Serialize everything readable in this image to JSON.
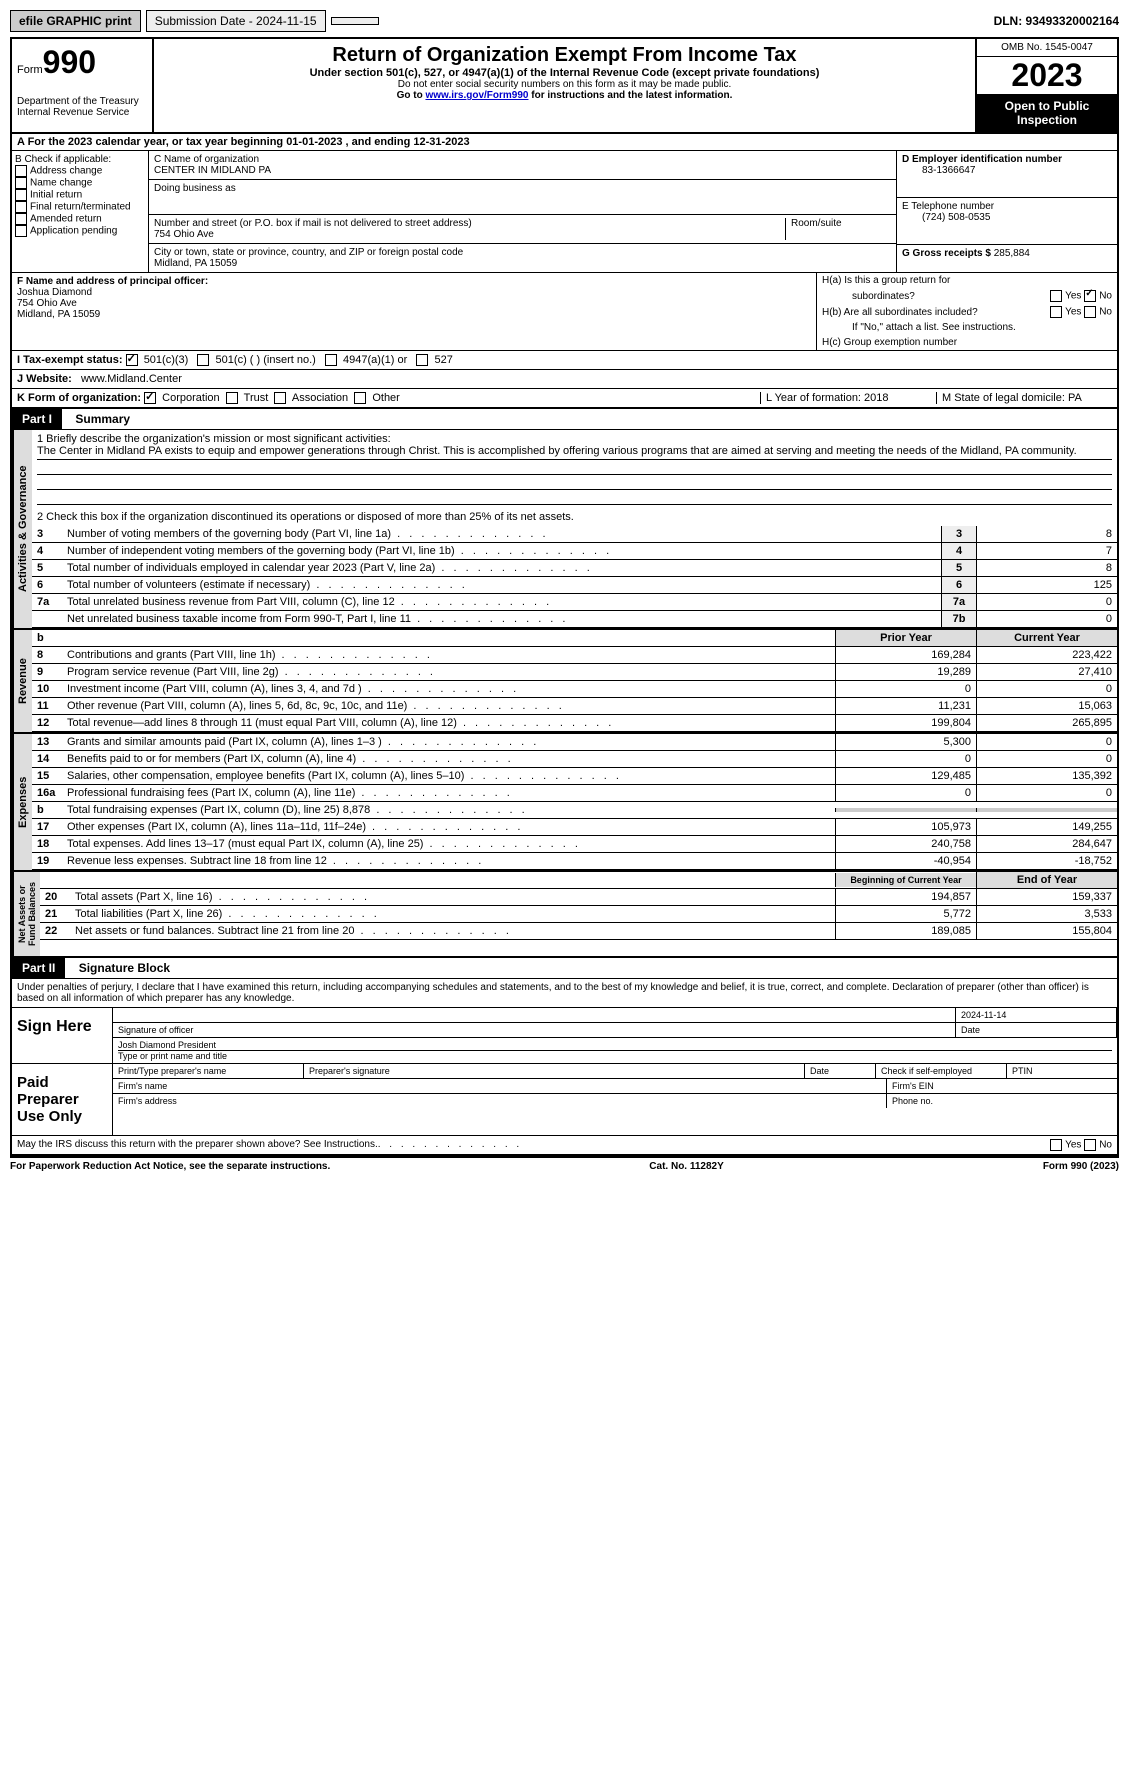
{
  "topbar": {
    "efile": "efile GRAPHIC print",
    "submission": "Submission Date - 2024-11-15",
    "dln": "DLN: 93493320002164"
  },
  "header": {
    "form_label": "Form",
    "form_num": "990",
    "dept": "Department of the Treasury\nInternal Revenue Service",
    "title": "Return of Organization Exempt From Income Tax",
    "subtitle": "Under section 501(c), 527, or 4947(a)(1) of the Internal Revenue Code (except private foundations)",
    "ssn_warn": "Do not enter social security numbers on this form as it may be made public.",
    "goto": "Go to ",
    "url": "www.irs.gov/Form990",
    "goto2": " for instructions and the latest information.",
    "omb": "OMB No. 1545-0047",
    "year": "2023",
    "public": "Open to Public Inspection"
  },
  "row_a": "A For the 2023 calendar year, or tax year beginning 01-01-2023    , and ending 12-31-2023",
  "box_b": {
    "label": "B Check if applicable:",
    "items": [
      "Address change",
      "Name change",
      "Initial return",
      "Final return/terminated",
      "Amended return",
      "Application pending"
    ]
  },
  "box_c": {
    "name_label": "C Name of organization",
    "name": "CENTER IN MIDLAND PA",
    "dba_label": "Doing business as",
    "addr_label": "Number and street (or P.O. box if mail is not delivered to street address)",
    "room_label": "Room/suite",
    "addr": "754 Ohio Ave",
    "city_label": "City or town, state or province, country, and ZIP or foreign postal code",
    "city": "Midland, PA  15059"
  },
  "box_d": {
    "ein_label": "D Employer identification number",
    "ein": "83-1366647",
    "phone_label": "E Telephone number",
    "phone": "(724) 508-0535",
    "gross_label": "G Gross receipts $ ",
    "gross": "285,884"
  },
  "box_f": {
    "label": "F  Name and address of principal officer:",
    "name": "Joshua Diamond",
    "addr1": "754 Ohio Ave",
    "addr2": "Midland, PA  15059"
  },
  "box_h": {
    "ha": "H(a)  Is this a group return for",
    "ha2": "subordinates?",
    "hb": "H(b)  Are all subordinates included?",
    "hb_note": "If \"No,\" attach a list. See instructions.",
    "hc": "H(c)  Group exemption number",
    "yes": "Yes",
    "no": "No"
  },
  "row_i": {
    "label": "I    Tax-exempt status:",
    "opts": [
      "501(c)(3)",
      "501(c) (  ) (insert no.)",
      "4947(a)(1) or",
      "527"
    ]
  },
  "row_j": {
    "label": "J   Website:",
    "val": "www.Midland.Center"
  },
  "row_k": {
    "label": "K Form of organization:",
    "opts": [
      "Corporation",
      "Trust",
      "Association",
      "Other"
    ],
    "l": "L Year of formation: 2018",
    "m": "M State of legal domicile: PA"
  },
  "part1": {
    "num": "Part I",
    "title": "Summary"
  },
  "mission": {
    "label": "1  Briefly describe the organization's mission or most significant activities:",
    "text": "The Center in Midland PA exists to equip and empower generations through Christ. This is accomplished by offering various programs that are aimed at serving and meeting the needs of the Midland, PA community."
  },
  "line2": "2   Check this box      if the organization discontinued its operations or disposed of more than 25% of its net assets.",
  "gov_lines": [
    {
      "n": "3",
      "d": "Number of voting members of the governing body (Part VI, line 1a)",
      "b": "3",
      "v": "8"
    },
    {
      "n": "4",
      "d": "Number of independent voting members of the governing body (Part VI, line 1b)",
      "b": "4",
      "v": "7"
    },
    {
      "n": "5",
      "d": "Total number of individuals employed in calendar year 2023 (Part V, line 2a)",
      "b": "5",
      "v": "8"
    },
    {
      "n": "6",
      "d": "Total number of volunteers (estimate if necessary)",
      "b": "6",
      "v": "125"
    },
    {
      "n": "7a",
      "d": "Total unrelated business revenue from Part VIII, column (C), line 12",
      "b": "7a",
      "v": "0"
    },
    {
      "n": "",
      "d": "Net unrelated business taxable income from Form 990-T, Part I, line 11",
      "b": "7b",
      "v": "0"
    }
  ],
  "rev_hdr": {
    "n": "b",
    "prior": "Prior Year",
    "curr": "Current Year"
  },
  "rev_lines": [
    {
      "n": "8",
      "d": "Contributions and grants (Part VIII, line 1h)",
      "p": "169,284",
      "c": "223,422"
    },
    {
      "n": "9",
      "d": "Program service revenue (Part VIII, line 2g)",
      "p": "19,289",
      "c": "27,410"
    },
    {
      "n": "10",
      "d": "Investment income (Part VIII, column (A), lines 3, 4, and 7d )",
      "p": "0",
      "c": "0"
    },
    {
      "n": "11",
      "d": "Other revenue (Part VIII, column (A), lines 5, 6d, 8c, 9c, 10c, and 11e)",
      "p": "11,231",
      "c": "15,063"
    },
    {
      "n": "12",
      "d": "Total revenue—add lines 8 through 11 (must equal Part VIII, column (A), line 12)",
      "p": "199,804",
      "c": "265,895"
    }
  ],
  "exp_lines": [
    {
      "n": "13",
      "d": "Grants and similar amounts paid (Part IX, column (A), lines 1–3 )",
      "p": "5,300",
      "c": "0"
    },
    {
      "n": "14",
      "d": "Benefits paid to or for members (Part IX, column (A), line 4)",
      "p": "0",
      "c": "0"
    },
    {
      "n": "15",
      "d": "Salaries, other compensation, employee benefits (Part IX, column (A), lines 5–10)",
      "p": "129,485",
      "c": "135,392"
    },
    {
      "n": "16a",
      "d": "Professional fundraising fees (Part IX, column (A), line 11e)",
      "p": "0",
      "c": "0"
    },
    {
      "n": "b",
      "d": "Total fundraising expenses (Part IX, column (D), line 25) 8,878",
      "p": "",
      "c": "",
      "gray": true
    },
    {
      "n": "17",
      "d": "Other expenses (Part IX, column (A), lines 11a–11d, 11f–24e)",
      "p": "105,973",
      "c": "149,255"
    },
    {
      "n": "18",
      "d": "Total expenses. Add lines 13–17 (must equal Part IX, column (A), line 25)",
      "p": "240,758",
      "c": "284,647"
    },
    {
      "n": "19",
      "d": "Revenue less expenses. Subtract line 18 from line 12",
      "p": "-40,954",
      "c": "-18,752"
    }
  ],
  "net_hdr": {
    "p": "Beginning of Current Year",
    "c": "End of Year"
  },
  "net_lines": [
    {
      "n": "20",
      "d": "Total assets (Part X, line 16)",
      "p": "194,857",
      "c": "159,337"
    },
    {
      "n": "21",
      "d": "Total liabilities (Part X, line 26)",
      "p": "5,772",
      "c": "3,533"
    },
    {
      "n": "22",
      "d": "Net assets or fund balances. Subtract line 21 from line 20",
      "p": "189,085",
      "c": "155,804"
    }
  ],
  "vtabs": {
    "gov": "Activities & Governance",
    "rev": "Revenue",
    "exp": "Expenses",
    "net": "Net Assets or\nFund Balances"
  },
  "part2": {
    "num": "Part II",
    "title": "Signature Block"
  },
  "perjury": "Under penalties of perjury, I declare that I have examined this return, including accompanying schedules and statements, and to the best of my knowledge and belief, it is true, correct, and complete. Declaration of preparer (other than officer) is based on all information of which preparer has any knowledge.",
  "sign": {
    "here": "Sign Here",
    "date": "2024-11-14",
    "sig_label": "Signature of officer",
    "date_label": "Date",
    "name": "Josh Diamond  President",
    "name_label": "Type or print name and title"
  },
  "paid": {
    "label": "Paid Preparer Use Only",
    "pname": "Print/Type preparer's name",
    "psig": "Preparer's signature",
    "pdate": "Date",
    "pcheck": "Check          if self-employed",
    "ptin": "PTIN",
    "fname": "Firm's name",
    "fein": "Firm's EIN",
    "faddr": "Firm's address",
    "fphone": "Phone no."
  },
  "discuss": "May the IRS discuss this return with the preparer shown above? See Instructions.",
  "footer": {
    "pra": "For Paperwork Reduction Act Notice, see the separate instructions.",
    "cat": "Cat. No. 11282Y",
    "form": "Form 990 (2023)"
  }
}
